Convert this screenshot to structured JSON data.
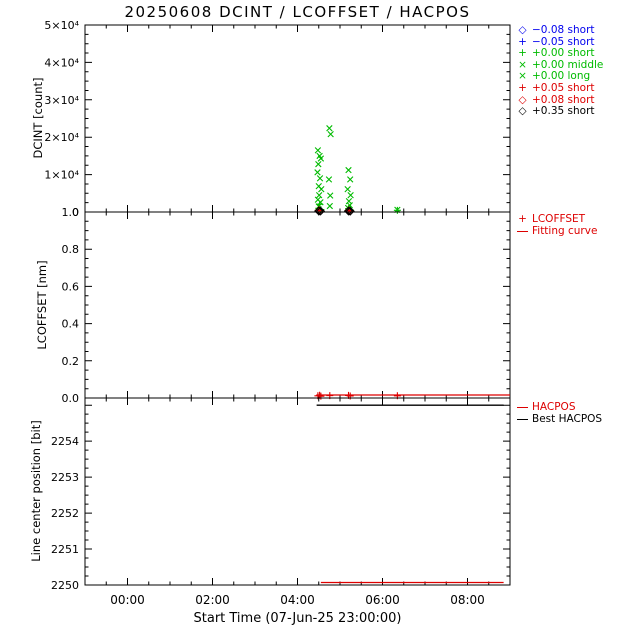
{
  "title": "20250608 DCINT / LCOFFSET / HACPOS",
  "xlabel": "Start Time (07-Jun-25 23:00:00)",
  "colors": {
    "background": "#ffffff",
    "axis": "#000000",
    "blue": "#0000ee",
    "green": "#00bb00",
    "red": "#dd0000",
    "black": "#000000"
  },
  "x_axis": {
    "xlim": [
      0,
      10
    ],
    "major_tick_hours": [
      1,
      3,
      5,
      7,
      9
    ],
    "major_tick_labels": [
      "00:00",
      "02:00",
      "04:00",
      "06:00",
      "08:00"
    ],
    "minor_tick_step_hours": 0.5
  },
  "chart_data": [
    {
      "type": "scatter",
      "name": "DCINT",
      "ylabel": "DCINT [count]",
      "ylim": [
        0,
        50000
      ],
      "ytick_vals": [
        0,
        10000,
        20000,
        30000,
        40000,
        50000
      ],
      "ytick_labels": [
        "0",
        "1×10⁴",
        "2×10⁴",
        "3×10⁴",
        "4×10⁴",
        "5×10⁴"
      ],
      "y_minor_step": 2500,
      "legend": [
        {
          "symbol": "diamond",
          "glyph": "◇",
          "label": "−0.08 short",
          "color": "#0000ee"
        },
        {
          "symbol": "plus",
          "glyph": "+",
          "label": "−0.05 short",
          "color": "#0000ee"
        },
        {
          "symbol": "plus",
          "glyph": "+",
          "label": "+0.00 short",
          "color": "#00bb00"
        },
        {
          "symbol": "x",
          "glyph": "×",
          "label": "+0.00 middle",
          "color": "#00bb00"
        },
        {
          "symbol": "x",
          "glyph": "×",
          "label": "+0.00 long",
          "color": "#00bb00"
        },
        {
          "symbol": "plus",
          "glyph": "+",
          "label": "+0.05 short",
          "color": "#dd0000"
        },
        {
          "symbol": "diamond",
          "glyph": "◇",
          "label": "+0.08 short",
          "color": "#dd0000"
        },
        {
          "symbol": "diamond",
          "glyph": "◇",
          "label": "+0.35 short",
          "color": "#000000"
        }
      ],
      "series": [
        {
          "label": "-0.08 short",
          "symbol": "diamond",
          "color": "#0000ee",
          "points": []
        },
        {
          "label": "-0.05 short",
          "symbol": "plus",
          "color": "#0000ee",
          "points": []
        },
        {
          "label": "+0.00 short",
          "symbol": "plus",
          "color": "#00bb00",
          "points": [
            [
              5.5,
              1000
            ],
            [
              5.52,
              2100
            ],
            [
              5.55,
              650
            ],
            [
              6.2,
              900
            ],
            [
              6.24,
              550
            ],
            [
              7.35,
              450
            ]
          ]
        },
        {
          "label": "+0.00 middle",
          "symbol": "x",
          "color": "#00bb00",
          "points": [
            [
              5.48,
              16500
            ],
            [
              5.52,
              15000
            ],
            [
              5.55,
              14300
            ],
            [
              5.49,
              12800
            ],
            [
              5.47,
              10600
            ],
            [
              5.53,
              9000
            ],
            [
              5.5,
              6900
            ],
            [
              5.56,
              6100
            ],
            [
              5.51,
              4500
            ],
            [
              5.48,
              3300
            ],
            [
              5.54,
              2600
            ],
            [
              5.5,
              1500
            ],
            [
              6.2,
              11200
            ],
            [
              6.24,
              8700
            ],
            [
              6.18,
              6100
            ],
            [
              6.25,
              4500
            ],
            [
              6.21,
              2900
            ],
            [
              6.23,
              1800
            ],
            [
              6.19,
              1100
            ]
          ]
        },
        {
          "label": "+0.00 long",
          "symbol": "x",
          "color": "#00bb00",
          "points": [
            [
              5.75,
              22400
            ],
            [
              5.78,
              20800
            ],
            [
              5.74,
              8700
            ],
            [
              5.77,
              4400
            ],
            [
              5.76,
              1600
            ],
            [
              7.35,
              600
            ]
          ]
        },
        {
          "label": "+0.05 short",
          "symbol": "plus",
          "color": "#dd0000",
          "points": [
            [
              5.49,
              500
            ],
            [
              5.53,
              380
            ],
            [
              6.2,
              420
            ],
            [
              6.23,
              300
            ]
          ]
        },
        {
          "label": "+0.08 short",
          "symbol": "diamond",
          "color": "#dd0000",
          "points": [
            [
              5.51,
              350
            ],
            [
              6.21,
              320
            ]
          ]
        },
        {
          "label": "+0.35 short",
          "symbol": "diamond",
          "color": "#000000",
          "points": [
            [
              5.5,
              280
            ],
            [
              5.54,
              240
            ],
            [
              6.2,
              260
            ],
            [
              6.24,
              220
            ]
          ]
        }
      ],
      "lines": []
    },
    {
      "type": "scatter+line",
      "name": "LCOFFSET",
      "ylabel": "LCOFFSET [nm]",
      "ylim": [
        0,
        1.0
      ],
      "ytick_vals": [
        0,
        0.2,
        0.4,
        0.6,
        0.8,
        1.0
      ],
      "ytick_labels": [
        "0.0",
        "0.2",
        "0.4",
        "0.6",
        "0.8",
        "1.0"
      ],
      "y_minor_step": 0.05,
      "legend": [
        {
          "symbol": "plus",
          "glyph": "+",
          "label": "LCOFFSET",
          "color": "#dd0000"
        },
        {
          "symbol": "line",
          "glyph": "—",
          "label": "Fitting curve",
          "color": "#dd0000"
        }
      ],
      "series": [
        {
          "label": "LCOFFSET",
          "symbol": "plus",
          "color": "#dd0000",
          "points": [
            [
              5.48,
              0.012
            ],
            [
              5.52,
              0.015
            ],
            [
              5.55,
              0.01
            ],
            [
              5.76,
              0.013
            ],
            [
              6.2,
              0.014
            ],
            [
              6.24,
              0.011
            ],
            [
              7.35,
              0.012
            ]
          ]
        }
      ],
      "lines": [
        {
          "label": "Fitting curve",
          "color": "#dd0000",
          "y": 0.016,
          "x_from": 5.45,
          "x_to": 10
        }
      ]
    },
    {
      "type": "line",
      "name": "HACPOS",
      "ylabel": "Line center position [bit]",
      "ylim": [
        2250,
        2255.2
      ],
      "ytick_vals": [
        2250,
        2251,
        2252,
        2253,
        2254,
        2255
      ],
      "ytick_labels": [
        "2250",
        "2251",
        "2252",
        "2253",
        "2254",
        ""
      ],
      "y_minor_step": 0.25,
      "legend": [
        {
          "symbol": "line",
          "glyph": "—",
          "label": "HACPOS",
          "color": "#dd0000"
        },
        {
          "symbol": "line",
          "glyph": "—",
          "label": "Best HACPOS",
          "color": "#000000"
        }
      ],
      "series": [],
      "lines": [
        {
          "label": "Best HACPOS",
          "color": "#000000",
          "y": 2255.0,
          "x_from": 5.45,
          "x_to": 9.85
        },
        {
          "label": "HACPOS",
          "color": "#dd0000",
          "y": 2250.07,
          "x_from": 5.55,
          "x_to": 9.85
        }
      ]
    }
  ]
}
